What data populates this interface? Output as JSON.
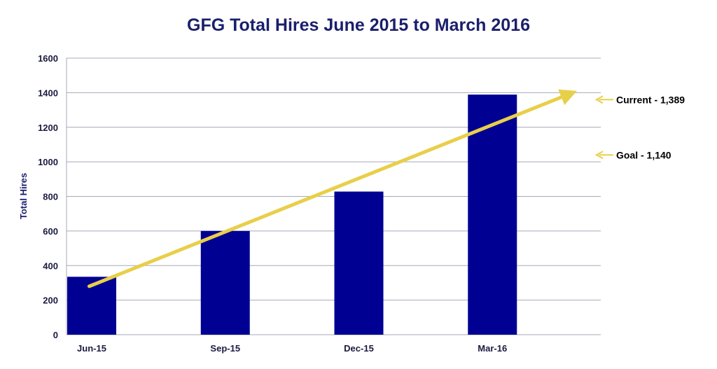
{
  "chart_data": {
    "type": "bar",
    "title": "GFG Total Hires June 2015 to March 2016",
    "xlabel": "",
    "ylabel": "Total Hires",
    "categories": [
      "Jun-15",
      "Sep-15",
      "Dec-15",
      "Mar-16"
    ],
    "values": [
      335,
      600,
      828,
      1389
    ],
    "ylim": [
      0,
      1600
    ],
    "yticks": [
      0,
      200,
      400,
      600,
      800,
      1000,
      1200,
      1400,
      1600
    ],
    "grid": true,
    "legend": "none",
    "trend_arrow": {
      "from": [
        0.17,
        280
      ],
      "to": [
        3.58,
        1410
      ]
    },
    "annotations": [
      {
        "text": "Current  - 1,389",
        "value": 1389
      },
      {
        "text": "Goal - 1,140",
        "value": 1140
      }
    ]
  },
  "colors": {
    "bar": "#000093",
    "title": "#1a1f6b",
    "grid": "#a8a8b8",
    "arrow": "#e8cf4a"
  }
}
